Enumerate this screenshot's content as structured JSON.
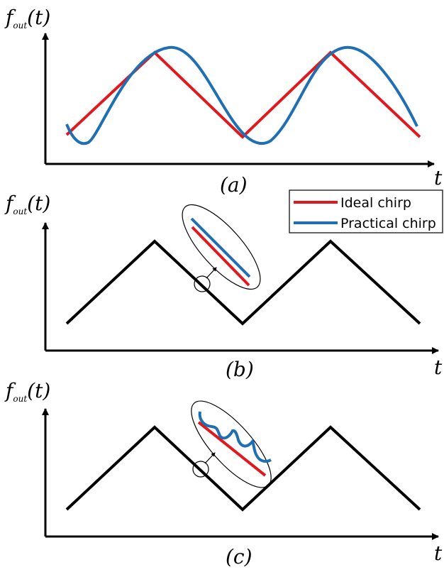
{
  "colors": {
    "ideal": "#e0191f",
    "practical": "#1f6fb2",
    "axis": "#000000"
  },
  "y_label": {
    "main": "f",
    "sub": "out",
    "arg": "(t)"
  },
  "x_label": "t",
  "legend": [
    {
      "label": "Ideal chirp",
      "color": "#e0191f"
    },
    {
      "label": "Practical chirp",
      "color": "#1f6fb2"
    }
  ],
  "panels": [
    {
      "caption": "(a)"
    },
    {
      "caption": "(b)"
    },
    {
      "caption": "(c)"
    }
  ]
}
